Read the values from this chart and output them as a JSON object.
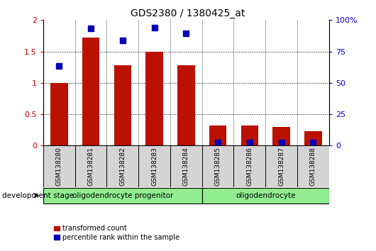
{
  "title": "GDS2380 / 1380425_at",
  "categories": [
    "GSM138280",
    "GSM138281",
    "GSM138282",
    "GSM138283",
    "GSM138284",
    "GSM138285",
    "GSM138286",
    "GSM138287",
    "GSM138288"
  ],
  "red_values": [
    1.0,
    1.72,
    1.28,
    1.5,
    1.28,
    0.32,
    0.32,
    0.3,
    0.23
  ],
  "blue_values_left_scale": [
    1.27,
    1.87,
    1.68,
    1.88,
    1.79,
    0.05,
    0.05,
    0.05,
    0.05
  ],
  "ylim_left": [
    0,
    2
  ],
  "ylim_right": [
    0,
    100
  ],
  "yticks_left": [
    0,
    0.5,
    1.0,
    1.5,
    2.0
  ],
  "yticks_right": [
    0,
    25,
    50,
    75,
    100
  ],
  "ytick_labels_left": [
    "0",
    "0.5",
    "1",
    "1.5",
    "2"
  ],
  "ytick_labels_right": [
    "0",
    "25",
    "50",
    "75",
    "100%"
  ],
  "dotted_lines": [
    0.5,
    1.0,
    1.5
  ],
  "groups": [
    {
      "label": "oligodendrocyte progenitor",
      "start": 0,
      "end": 5,
      "color": "#90EE90"
    },
    {
      "label": "oligodendrocyte",
      "start": 5,
      "end": 9,
      "color": "#90EE90"
    }
  ],
  "bar_width": 0.55,
  "bar_color": "#BB1100",
  "dot_color": "#0000BB",
  "dot_size": 30,
  "bg_color": "#ffffff",
  "plot_bg_color": "#ffffff",
  "tick_color_left": "#CC0000",
  "tick_color_right": "#0000CC",
  "cell_color": "#d4d4d4",
  "legend_red_label": "transformed count",
  "legend_blue_label": "percentile rank within the sample",
  "dev_stage_label": "development stage",
  "figure_width": 5.3,
  "figure_height": 3.54
}
